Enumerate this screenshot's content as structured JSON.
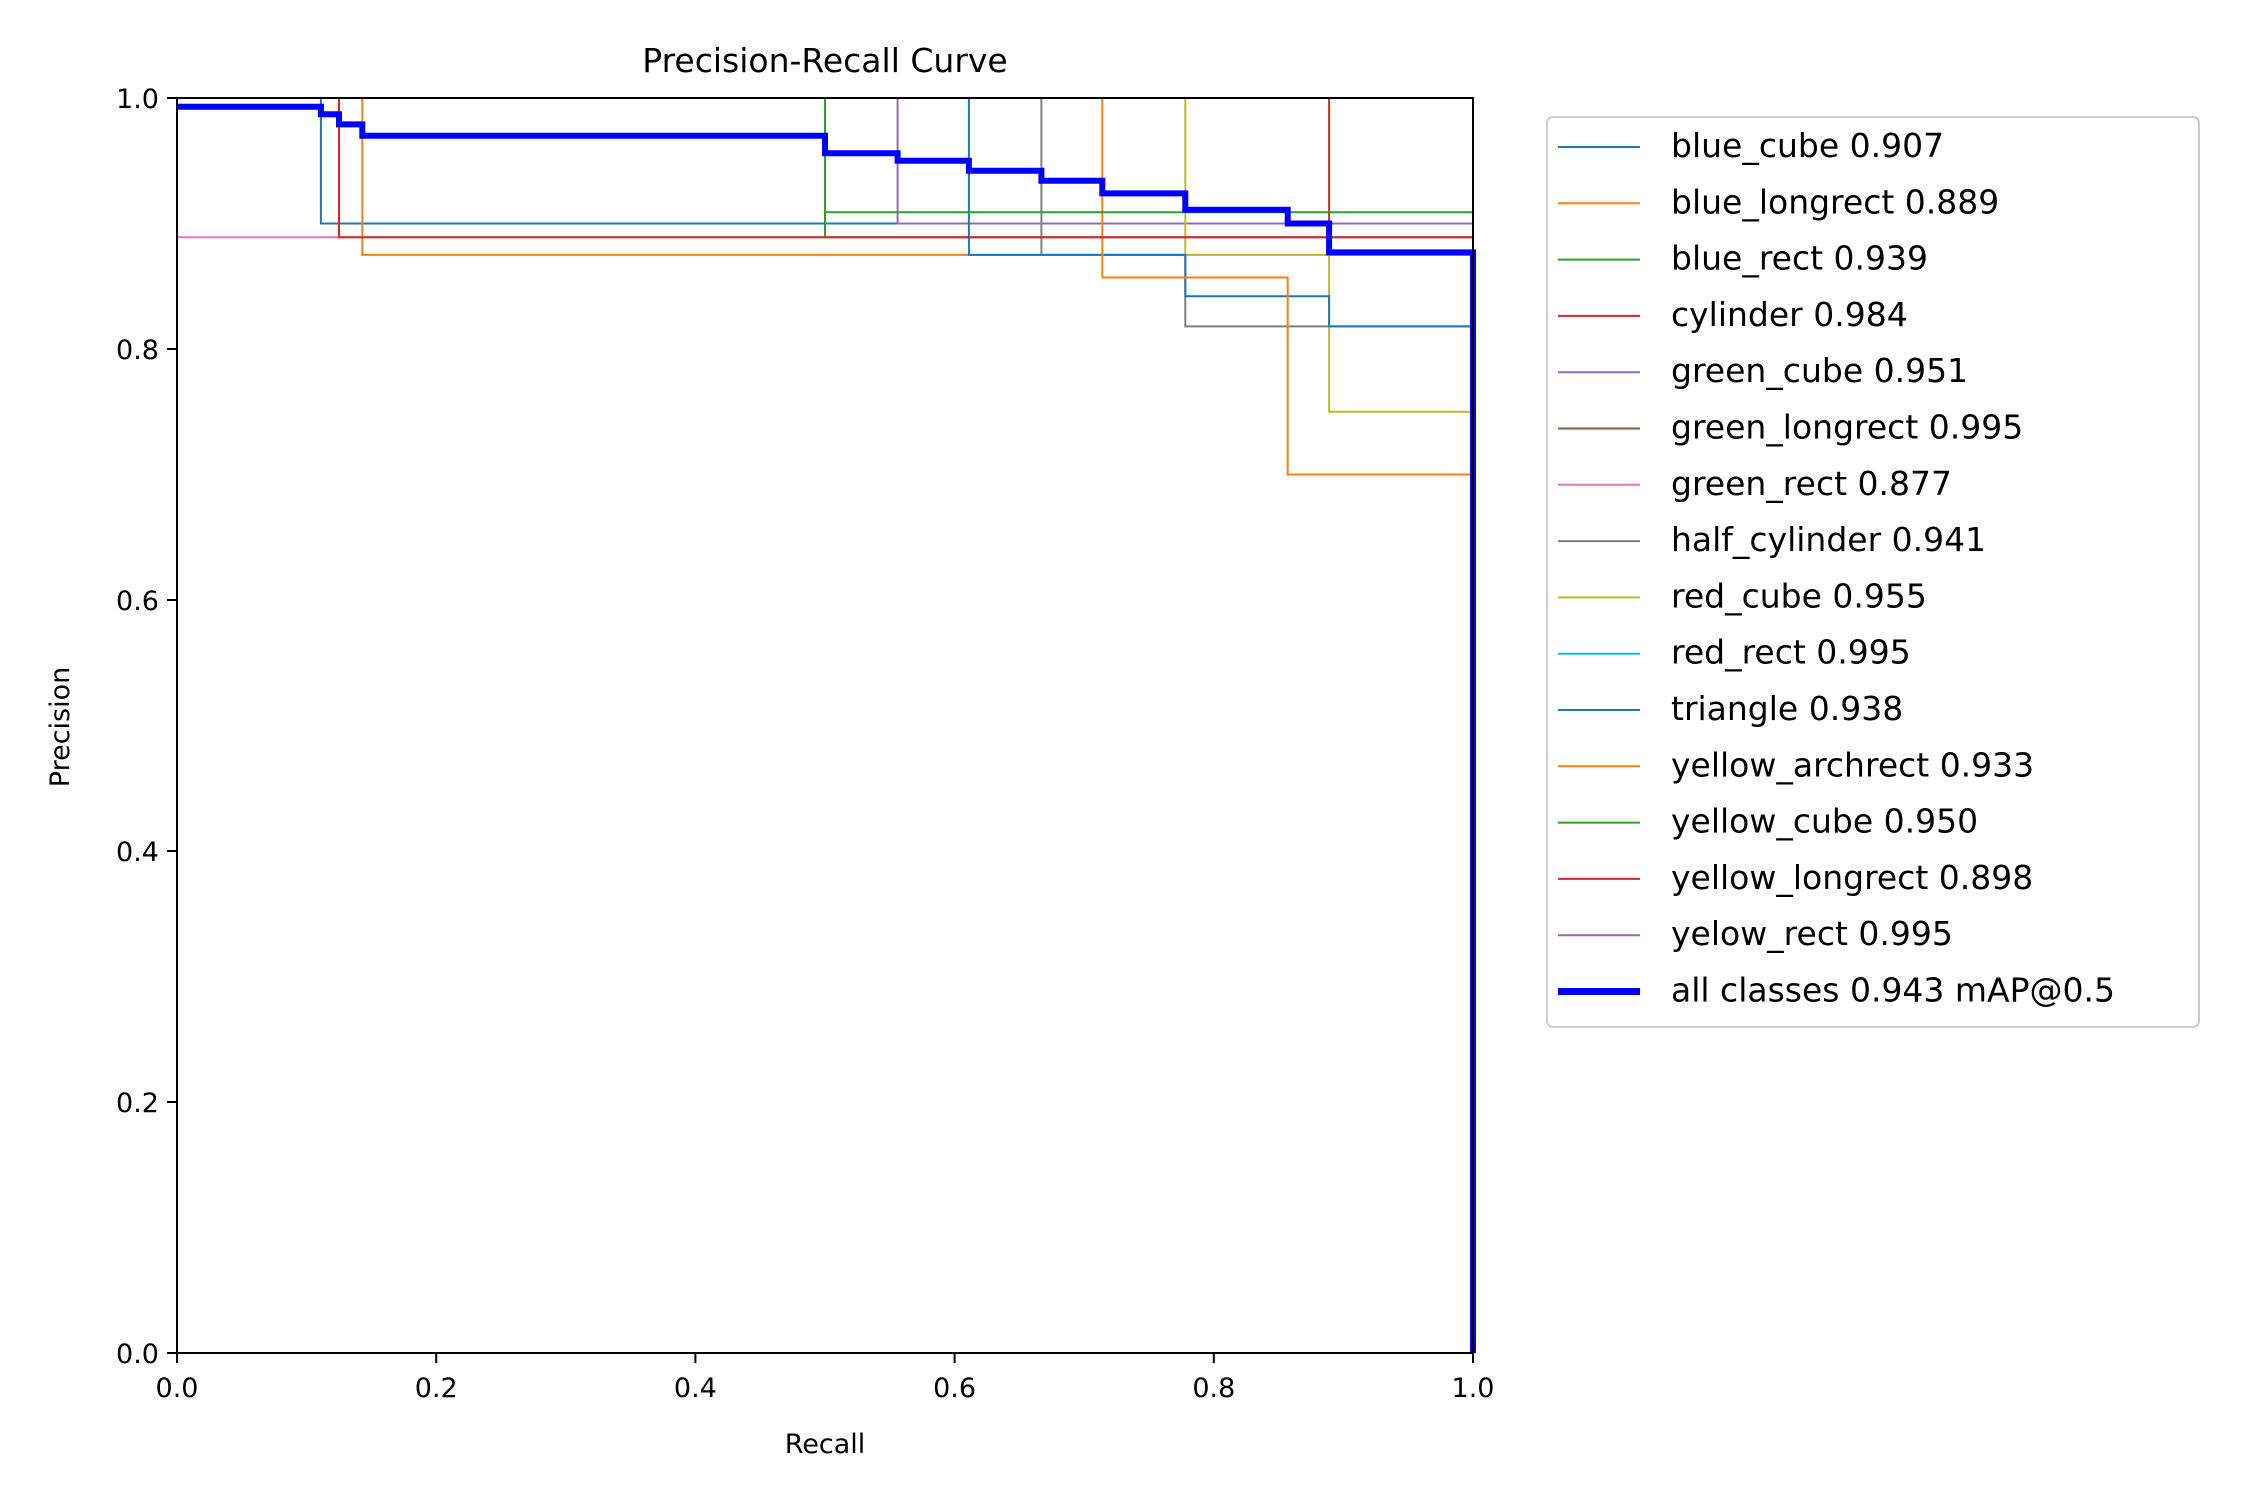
{
  "chart_data": {
    "type": "line",
    "title": "Precision-Recall Curve",
    "xlabel": "Recall",
    "ylabel": "Precision",
    "xlim": [
      0,
      1
    ],
    "ylim": [
      0,
      1
    ],
    "xticks": [
      "0.0",
      "0.2",
      "0.4",
      "0.6",
      "0.8",
      "1.0"
    ],
    "yticks": [
      "0.0",
      "0.2",
      "0.4",
      "0.6",
      "0.8",
      "1.0"
    ],
    "grid": false,
    "legend_position": "outside-top-right",
    "series": [
      {
        "name": "blue_cube 0.907",
        "color": "#1f77b4",
        "width": 1,
        "points": [
          [
            0,
            1
          ],
          [
            0.111,
            1
          ],
          [
            0.111,
            0.9
          ],
          [
            1,
            0.9
          ],
          [
            1,
            0
          ]
        ]
      },
      {
        "name": "blue_longrect 0.889",
        "color": "#ff7f0e",
        "width": 1,
        "points": [
          [
            0,
            1
          ],
          [
            0.143,
            1
          ],
          [
            0.143,
            0.875
          ],
          [
            1,
            0.875
          ],
          [
            1,
            0
          ]
        ]
      },
      {
        "name": "blue_rect 0.939",
        "color": "#2ca02c",
        "width": 1,
        "points": [
          [
            0,
            1
          ],
          [
            0.5,
            1
          ],
          [
            0.5,
            0.889
          ],
          [
            1,
            0.889
          ],
          [
            1,
            0
          ]
        ]
      },
      {
        "name": "cylinder 0.984",
        "color": "#d62728",
        "width": 1,
        "points": [
          [
            0,
            1
          ],
          [
            0.889,
            1
          ],
          [
            0.889,
            0.9
          ],
          [
            1,
            0.9
          ],
          [
            1,
            0
          ]
        ]
      },
      {
        "name": "green_cube 0.951",
        "color": "#9467bd",
        "width": 1,
        "points": [
          [
            0,
            1
          ],
          [
            0.556,
            1
          ],
          [
            0.556,
            0.9
          ],
          [
            1,
            0.9
          ],
          [
            1,
            0
          ]
        ]
      },
      {
        "name": "green_longrect 0.995",
        "color": "#8c564b",
        "width": 1,
        "points": [
          [
            0,
            1
          ],
          [
            1,
            1
          ],
          [
            1,
            0
          ]
        ]
      },
      {
        "name": "green_rect 0.877",
        "color": "#e377c2",
        "width": 1,
        "points": [
          [
            0,
            0.889
          ],
          [
            1,
            0.889
          ],
          [
            1,
            0
          ]
        ]
      },
      {
        "name": "half_cylinder 0.941",
        "color": "#7f7f7f",
        "width": 1,
        "points": [
          [
            0,
            1
          ],
          [
            0.667,
            1
          ],
          [
            0.667,
            0.875
          ],
          [
            0.778,
            0.875
          ],
          [
            0.778,
            0.818
          ],
          [
            1,
            0.818
          ],
          [
            1,
            0
          ]
        ]
      },
      {
        "name": "red_cube 0.955",
        "color": "#bcbd22",
        "width": 1,
        "points": [
          [
            0,
            1
          ],
          [
            0.778,
            1
          ],
          [
            0.778,
            0.875
          ],
          [
            0.889,
            0.875
          ],
          [
            0.889,
            0.75
          ],
          [
            1,
            0.75
          ],
          [
            1,
            0
          ]
        ]
      },
      {
        "name": "red_rect 0.995",
        "color": "#17becf",
        "width": 1,
        "points": [
          [
            0,
            1
          ],
          [
            1,
            1
          ],
          [
            1,
            0
          ]
        ]
      },
      {
        "name": "triangle 0.938",
        "color": "#1f77b4",
        "width": 1,
        "points": [
          [
            0,
            1
          ],
          [
            0.611,
            1
          ],
          [
            0.611,
            0.875
          ],
          [
            0.778,
            0.875
          ],
          [
            0.778,
            0.842
          ],
          [
            0.889,
            0.842
          ],
          [
            0.889,
            0.818
          ],
          [
            1,
            0.818
          ],
          [
            1,
            0
          ]
        ]
      },
      {
        "name": "yellow_archrect 0.933",
        "color": "#ff7f0e",
        "width": 1,
        "points": [
          [
            0,
            1
          ],
          [
            0.714,
            1
          ],
          [
            0.714,
            0.857
          ],
          [
            0.857,
            0.857
          ],
          [
            0.857,
            0.7
          ],
          [
            1,
            0.7
          ],
          [
            1,
            0
          ]
        ]
      },
      {
        "name": "yellow_cube 0.950",
        "color": "#2ca02c",
        "width": 1,
        "points": [
          [
            0,
            1
          ],
          [
            0.5,
            1
          ],
          [
            0.5,
            0.909
          ],
          [
            1,
            0.909
          ],
          [
            1,
            0
          ]
        ]
      },
      {
        "name": "yellow_longrect 0.898",
        "color": "#d62728",
        "width": 1,
        "points": [
          [
            0,
            1
          ],
          [
            0.125,
            1
          ],
          [
            0.125,
            0.889
          ],
          [
            1,
            0.889
          ],
          [
            1,
            0
          ]
        ]
      },
      {
        "name": "yelow_rect 0.995",
        "color": "#9467bd",
        "width": 1,
        "points": [
          [
            0,
            1
          ],
          [
            1,
            1
          ],
          [
            1,
            0
          ]
        ]
      },
      {
        "name": "all classes 0.943 mAP@0.5",
        "color": "#0000ff",
        "width": 3,
        "points": [
          [
            0,
            0.993
          ],
          [
            0.111,
            0.993
          ],
          [
            0.111,
            0.987
          ],
          [
            0.125,
            0.987
          ],
          [
            0.125,
            0.979
          ],
          [
            0.143,
            0.979
          ],
          [
            0.143,
            0.97
          ],
          [
            0.5,
            0.97
          ],
          [
            0.5,
            0.956
          ],
          [
            0.556,
            0.956
          ],
          [
            0.556,
            0.95
          ],
          [
            0.611,
            0.95
          ],
          [
            0.611,
            0.942
          ],
          [
            0.667,
            0.942
          ],
          [
            0.667,
            0.934
          ],
          [
            0.714,
            0.934
          ],
          [
            0.714,
            0.924
          ],
          [
            0.778,
            0.924
          ],
          [
            0.778,
            0.911
          ],
          [
            0.857,
            0.911
          ],
          [
            0.857,
            0.9
          ],
          [
            0.889,
            0.9
          ],
          [
            0.889,
            0.877
          ],
          [
            1,
            0.877
          ],
          [
            1,
            0
          ]
        ]
      }
    ]
  }
}
